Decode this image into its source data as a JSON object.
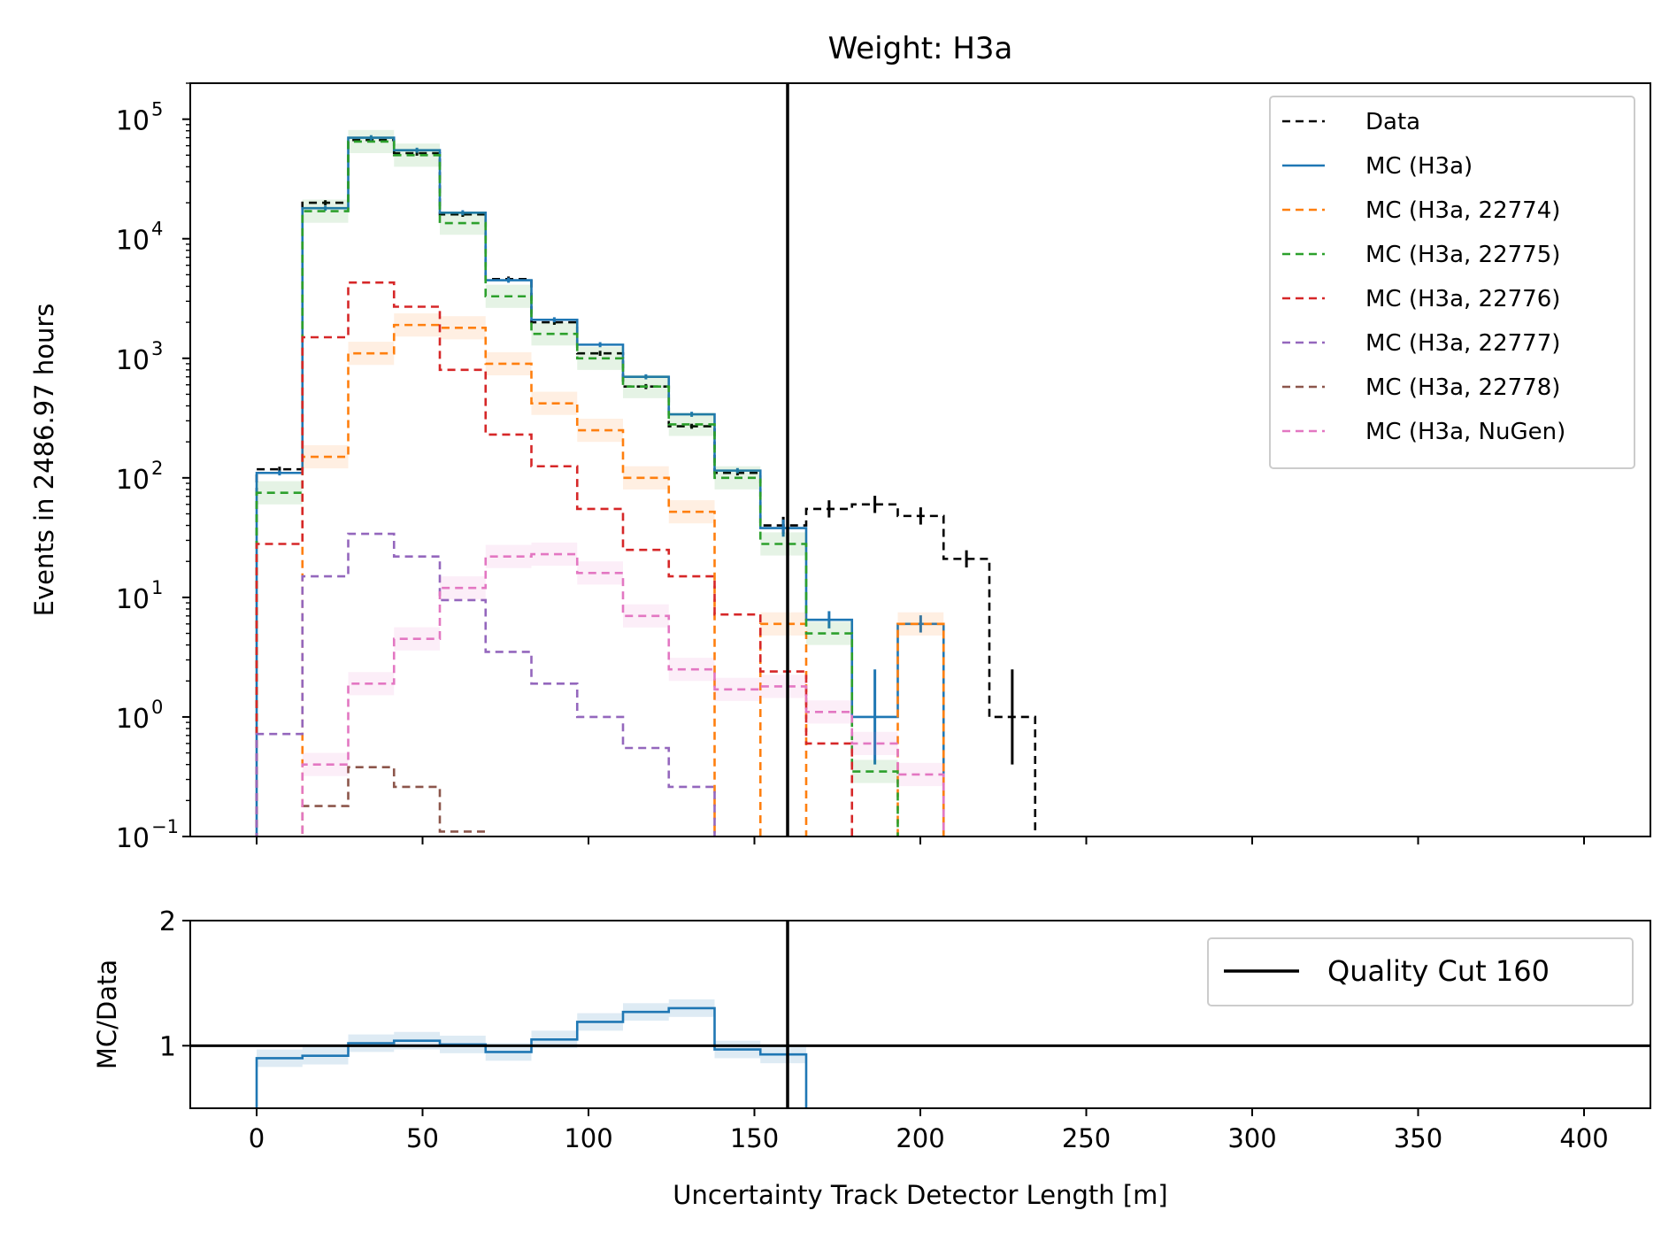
{
  "chart_data": [
    {
      "type": "line",
      "title": "Weight: H3a",
      "xlabel": "",
      "ylabel": "Events in 2486.97 hours",
      "xlim": [
        -20,
        420
      ],
      "ylim": [
        0.1,
        200000
      ],
      "yscale": "log",
      "grid": false,
      "legend_position": "top-right",
      "x_ticks": [
        0,
        50,
        100,
        150,
        200,
        250,
        300,
        350,
        400
      ],
      "y_ticks": [
        {
          "value": 0.1,
          "base": "10",
          "exp": "−1"
        },
        {
          "value": 1,
          "base": "10",
          "exp": "0"
        },
        {
          "value": 10,
          "base": "10",
          "exp": "1"
        },
        {
          "value": 100,
          "base": "10",
          "exp": "2"
        },
        {
          "value": 1000,
          "base": "10",
          "exp": "3"
        },
        {
          "value": 10000,
          "base": "10",
          "exp": "4"
        },
        {
          "value": 100000,
          "base": "10",
          "exp": "5"
        }
      ],
      "bin_edges": [
        0,
        13.8,
        27.6,
        41.4,
        55.2,
        69,
        82.8,
        96.6,
        110.4,
        124.2,
        138,
        151.8,
        165.6,
        179.4,
        193.2,
        207,
        220.8,
        234.6
      ],
      "cut_line_x": 160,
      "series": [
        {
          "name": "Data",
          "color": "#000000",
          "dashed": true,
          "errors": true,
          "values": [
            118,
            20000,
            67000,
            52000,
            16000,
            4600,
            2000,
            1100,
            580,
            270,
            110,
            40,
            55,
            60,
            48,
            21,
            1
          ]
        },
        {
          "name": "MC (H3a)",
          "color": "#1f77b4",
          "dashed": false,
          "errors": true,
          "values": [
            110,
            18000,
            70000,
            55000,
            16500,
            4500,
            2100,
            1300,
            700,
            340,
            115,
            38,
            6.5,
            1,
            6,
            0,
            0
          ]
        },
        {
          "name": "MC (H3a, 22774)",
          "color": "#ff7f0e",
          "dashed": true,
          "band": true,
          "values": [
            0,
            150,
            1100,
            1900,
            1800,
            900,
            420,
            250,
            100,
            52,
            0,
            6,
            0,
            0,
            6,
            0,
            0
          ]
        },
        {
          "name": "MC (H3a, 22775)",
          "color": "#2ca02c",
          "dashed": true,
          "band": true,
          "values": [
            75,
            17000,
            65000,
            50000,
            13500,
            3300,
            1600,
            1000,
            580,
            280,
            100,
            28,
            5,
            0.35,
            0,
            0,
            0
          ]
        },
        {
          "name": "MC (H3a, 22776)",
          "color": "#d62728",
          "dashed": true,
          "values": [
            28,
            1500,
            4300,
            2700,
            800,
            230,
            125,
            55,
            25,
            15,
            7.2,
            2.4,
            0.6,
            0,
            0,
            0,
            0
          ]
        },
        {
          "name": "MC (H3a, 22777)",
          "color": "#9467bd",
          "dashed": true,
          "values": [
            0.72,
            15,
            34,
            22,
            9.5,
            3.5,
            1.9,
            1,
            0.55,
            0.26,
            0,
            0,
            0,
            0,
            0,
            0,
            0
          ]
        },
        {
          "name": "MC (H3a, 22778)",
          "color": "#8c564b",
          "dashed": true,
          "values": [
            0,
            0.18,
            0.38,
            0.26,
            0.11,
            0,
            0,
            0,
            0,
            0,
            0,
            0,
            0,
            0,
            0,
            0,
            0
          ]
        },
        {
          "name": "MC (H3a, NuGen)",
          "color": "#e377c2",
          "dashed": true,
          "band": true,
          "values": [
            0,
            0.4,
            1.9,
            4.5,
            12,
            22,
            23,
            16,
            7,
            2.5,
            1.7,
            1.8,
            1.1,
            0.6,
            0.33,
            0,
            0
          ]
        }
      ]
    },
    {
      "type": "line",
      "title": "",
      "xlabel": "Uncertainty Track Detector Length [m]",
      "ylabel": "MC/Data",
      "xlim": [
        -20,
        420
      ],
      "ylim": [
        0.5,
        2
      ],
      "grid": false,
      "legend_position": "top-right",
      "x_ticks": [
        0,
        50,
        100,
        150,
        200,
        250,
        300,
        350,
        400
      ],
      "y_ticks": [
        1,
        2
      ],
      "reference_line": 1,
      "cut_line_x": 160,
      "series": [
        {
          "name": "Quality Cut 160",
          "color": "#000000",
          "legend_only": true,
          "values": []
        },
        {
          "name": "MC/Data",
          "color": "#1f77b4",
          "band": true,
          "values": [
            0.9,
            0.92,
            1.02,
            1.04,
            1.01,
            0.95,
            1.05,
            1.19,
            1.27,
            1.3,
            0.97,
            0.93
          ]
        }
      ]
    }
  ]
}
